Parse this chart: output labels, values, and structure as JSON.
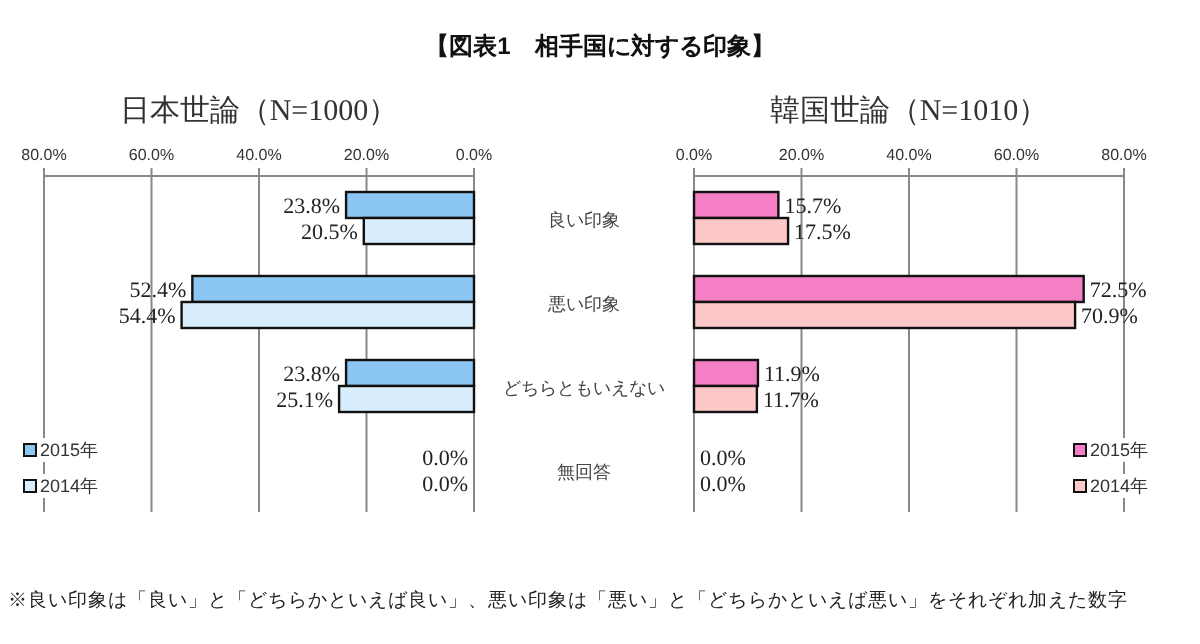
{
  "chart_data": [
    {
      "type": "bar",
      "orientation": "horizontal",
      "title": "日本世論（N=1000）",
      "annotations": [
        "【図表1　相手国に対する印象】",
        "※良い印象は「良い」と「どちらかといえば良い」、悪い印象は「悪い」と「どちらかといえば悪い」をそれぞれ加えた数字"
      ],
      "categories": [
        "良い印象",
        "悪い印象",
        "どちらともいえない",
        "無回答"
      ],
      "xlim": [
        80,
        0
      ],
      "xticks": [
        {
          "value": 80,
          "label": "80.0%"
        },
        {
          "value": 60,
          "label": "60.0%"
        },
        {
          "value": 40,
          "label": "40.0%"
        },
        {
          "value": 20,
          "label": "20.0%"
        },
        {
          "value": 0,
          "label": "0.0%"
        }
      ],
      "grid": "x",
      "legend": "bottom left",
      "series": [
        {
          "name": "2015年",
          "color": "#8cc6f2",
          "values": [
            23.8,
            52.4,
            23.8,
            0
          ],
          "value_labels": [
            "23.8%",
            "52.4%",
            "23.8%",
            "0.0%"
          ]
        },
        {
          "name": "2014年",
          "color": "#d8eefc",
          "values": [
            20.5,
            54.4,
            25.1,
            0
          ],
          "value_labels": [
            "20.5%",
            "54.4%",
            "25.1%",
            "0.0%"
          ]
        }
      ]
    },
    {
      "type": "bar",
      "orientation": "horizontal",
      "title": "韓国世論（N=1010）",
      "categories": [
        "良い印象",
        "悪い印象",
        "どちらともいえない",
        "無回答"
      ],
      "xlim": [
        0,
        80
      ],
      "xticks": [
        {
          "value": 0,
          "label": "0.0%"
        },
        {
          "value": 20,
          "label": "20.0%"
        },
        {
          "value": 40,
          "label": "40.0%"
        },
        {
          "value": 60,
          "label": "60.0%"
        },
        {
          "value": 80,
          "label": "80.0%"
        }
      ],
      "grid": "x",
      "legend": "bottom right",
      "tick_labels": "x",
      "series": [
        {
          "name": "2015年",
          "color": "#f47fc4",
          "values": [
            15.7,
            72.5,
            11.9,
            0
          ],
          "value_labels": [
            "15.7%",
            "72.5%",
            "11.9%",
            "0.0%"
          ]
        },
        {
          "name": "2014年",
          "color": "#fcc8c8",
          "values": [
            17.5,
            70.9,
            11.7,
            0
          ],
          "value_labels": [
            "17.5%",
            "70.9%",
            "11.7%",
            "0.0%"
          ]
        }
      ]
    }
  ]
}
